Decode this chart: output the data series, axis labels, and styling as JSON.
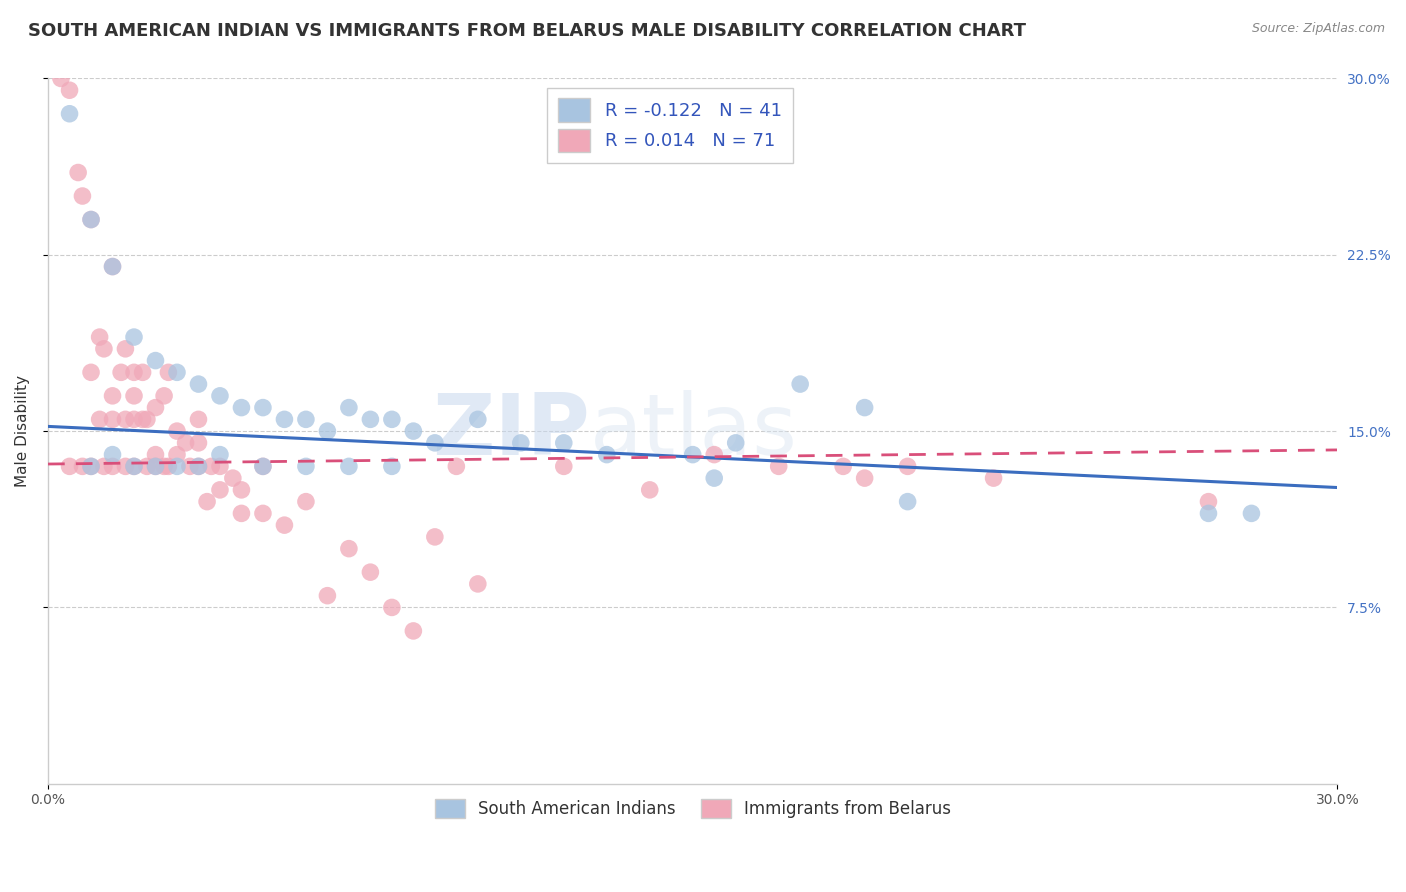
{
  "title": "SOUTH AMERICAN INDIAN VS IMMIGRANTS FROM BELARUS MALE DISABILITY CORRELATION CHART",
  "source": "Source: ZipAtlas.com",
  "ylabel": "Male Disability",
  "xlim": [
    0.0,
    0.3
  ],
  "ylim": [
    0.0,
    0.3
  ],
  "legend_r_blue": "-0.122",
  "legend_n_blue": "41",
  "legend_r_pink": "0.014",
  "legend_n_pink": "71",
  "blue_color": "#a8c4e0",
  "pink_color": "#f0a8b8",
  "blue_line_color": "#3b6dbf",
  "pink_line_color": "#d94f7a",
  "watermark_zip": "ZIP",
  "watermark_atlas": "atlas",
  "blue_scatter_x": [
    0.005,
    0.01,
    0.01,
    0.015,
    0.015,
    0.02,
    0.02,
    0.025,
    0.025,
    0.03,
    0.03,
    0.035,
    0.035,
    0.04,
    0.04,
    0.045,
    0.05,
    0.05,
    0.055,
    0.06,
    0.06,
    0.065,
    0.07,
    0.07,
    0.075,
    0.08,
    0.08,
    0.085,
    0.09,
    0.1,
    0.11,
    0.12,
    0.13,
    0.15,
    0.155,
    0.16,
    0.175,
    0.19,
    0.2,
    0.27,
    0.28
  ],
  "blue_scatter_y": [
    0.285,
    0.24,
    0.135,
    0.22,
    0.14,
    0.19,
    0.135,
    0.18,
    0.135,
    0.175,
    0.135,
    0.17,
    0.135,
    0.165,
    0.14,
    0.16,
    0.16,
    0.135,
    0.155,
    0.155,
    0.135,
    0.15,
    0.16,
    0.135,
    0.155,
    0.155,
    0.135,
    0.15,
    0.145,
    0.155,
    0.145,
    0.145,
    0.14,
    0.14,
    0.13,
    0.145,
    0.17,
    0.16,
    0.12,
    0.115,
    0.115
  ],
  "pink_scatter_x": [
    0.003,
    0.005,
    0.005,
    0.007,
    0.008,
    0.008,
    0.01,
    0.01,
    0.01,
    0.012,
    0.012,
    0.013,
    0.013,
    0.015,
    0.015,
    0.015,
    0.015,
    0.017,
    0.018,
    0.018,
    0.018,
    0.02,
    0.02,
    0.02,
    0.02,
    0.022,
    0.022,
    0.023,
    0.023,
    0.025,
    0.025,
    0.025,
    0.027,
    0.027,
    0.028,
    0.028,
    0.03,
    0.03,
    0.032,
    0.033,
    0.035,
    0.035,
    0.035,
    0.037,
    0.038,
    0.04,
    0.04,
    0.043,
    0.045,
    0.045,
    0.05,
    0.05,
    0.055,
    0.06,
    0.065,
    0.07,
    0.075,
    0.08,
    0.085,
    0.09,
    0.095,
    0.1,
    0.12,
    0.14,
    0.155,
    0.17,
    0.185,
    0.19,
    0.2,
    0.22,
    0.27
  ],
  "pink_scatter_y": [
    0.3,
    0.295,
    0.135,
    0.26,
    0.135,
    0.25,
    0.24,
    0.175,
    0.135,
    0.19,
    0.155,
    0.185,
    0.135,
    0.22,
    0.165,
    0.155,
    0.135,
    0.175,
    0.185,
    0.155,
    0.135,
    0.175,
    0.165,
    0.135,
    0.155,
    0.155,
    0.175,
    0.155,
    0.135,
    0.16,
    0.14,
    0.135,
    0.165,
    0.135,
    0.175,
    0.135,
    0.15,
    0.14,
    0.145,
    0.135,
    0.155,
    0.145,
    0.135,
    0.12,
    0.135,
    0.135,
    0.125,
    0.13,
    0.115,
    0.125,
    0.115,
    0.135,
    0.11,
    0.12,
    0.08,
    0.1,
    0.09,
    0.075,
    0.065,
    0.105,
    0.135,
    0.085,
    0.135,
    0.125,
    0.14,
    0.135,
    0.135,
    0.13,
    0.135,
    0.13,
    0.12
  ],
  "blue_line_x": [
    0.0,
    0.3
  ],
  "blue_line_y": [
    0.152,
    0.126
  ],
  "pink_line_x": [
    0.0,
    0.3
  ],
  "pink_line_y": [
    0.136,
    0.142
  ],
  "grid_color": "#cccccc",
  "background_color": "#ffffff",
  "title_fontsize": 13,
  "axis_label_fontsize": 11,
  "tick_fontsize": 10,
  "legend_fontsize": 13
}
